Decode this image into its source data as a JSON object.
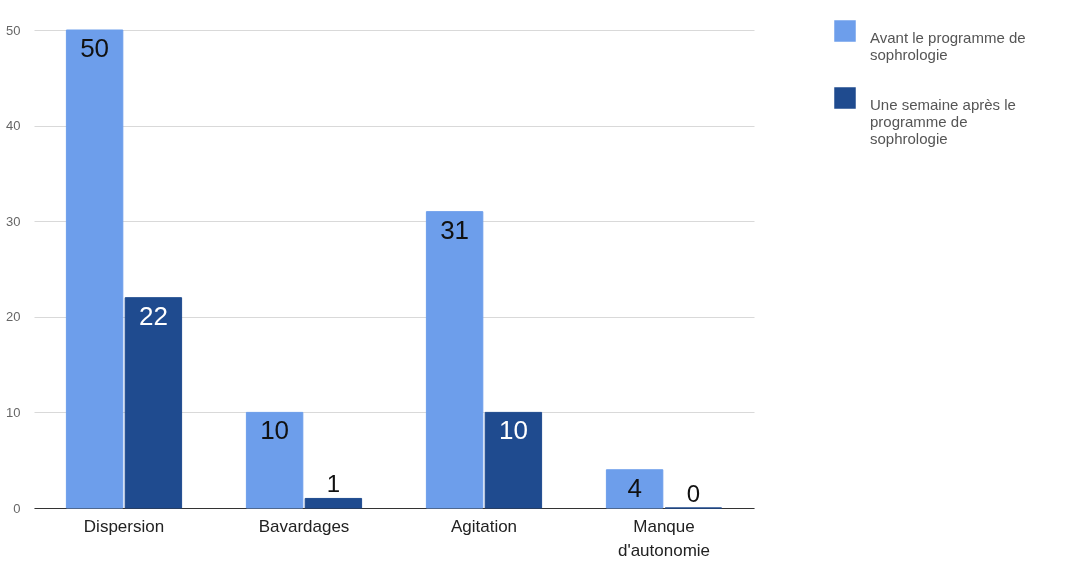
{
  "chart_data": {
    "type": "bar",
    "categories": [
      "Dispersion",
      "Bavardages",
      "Agitation",
      "Manque d'autonomie"
    ],
    "series": [
      {
        "name": "Avant le programme de sophrologie",
        "color": "#6d9eeb",
        "values": [
          50,
          10,
          31,
          4
        ]
      },
      {
        "name": "Une semaine après le programme de sophrologie",
        "color": "#1f4b8f",
        "values": [
          22,
          1,
          10,
          0
        ]
      }
    ],
    "ylim": [
      0,
      50
    ],
    "yticks": [
      0,
      10,
      20,
      30,
      40,
      50
    ],
    "grid": "y",
    "legend": "top right",
    "data_labels": true
  }
}
